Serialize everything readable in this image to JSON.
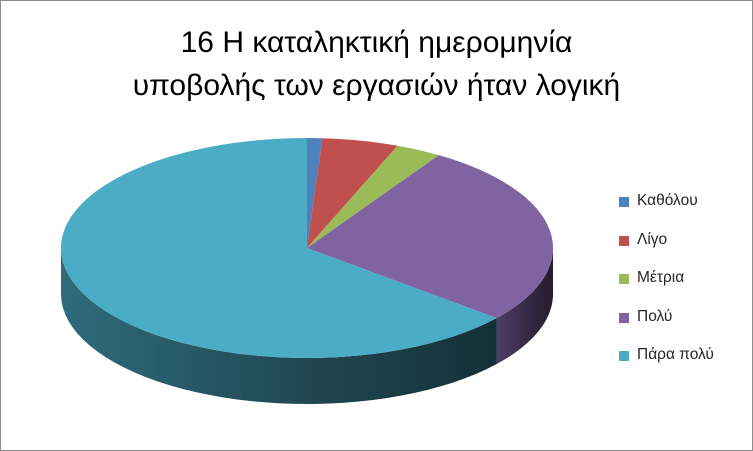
{
  "chart_data": {
    "type": "pie",
    "title_lines": [
      "16 Η καταληκτική ημερομηνία",
      "υποβολής των εργασιών ήταν λογική"
    ],
    "categories": [
      "Καθόλου",
      "Λίγο",
      "Μέτρια",
      "Πολύ",
      "Πάρα πολύ"
    ],
    "values": [
      1,
      5,
      3,
      27,
      64
    ],
    "colors": [
      "#4F81BD",
      "#C0504D",
      "#9BBB59",
      "#8064A2",
      "#4BACC6"
    ],
    "legend_position": "right",
    "style": "3d"
  }
}
